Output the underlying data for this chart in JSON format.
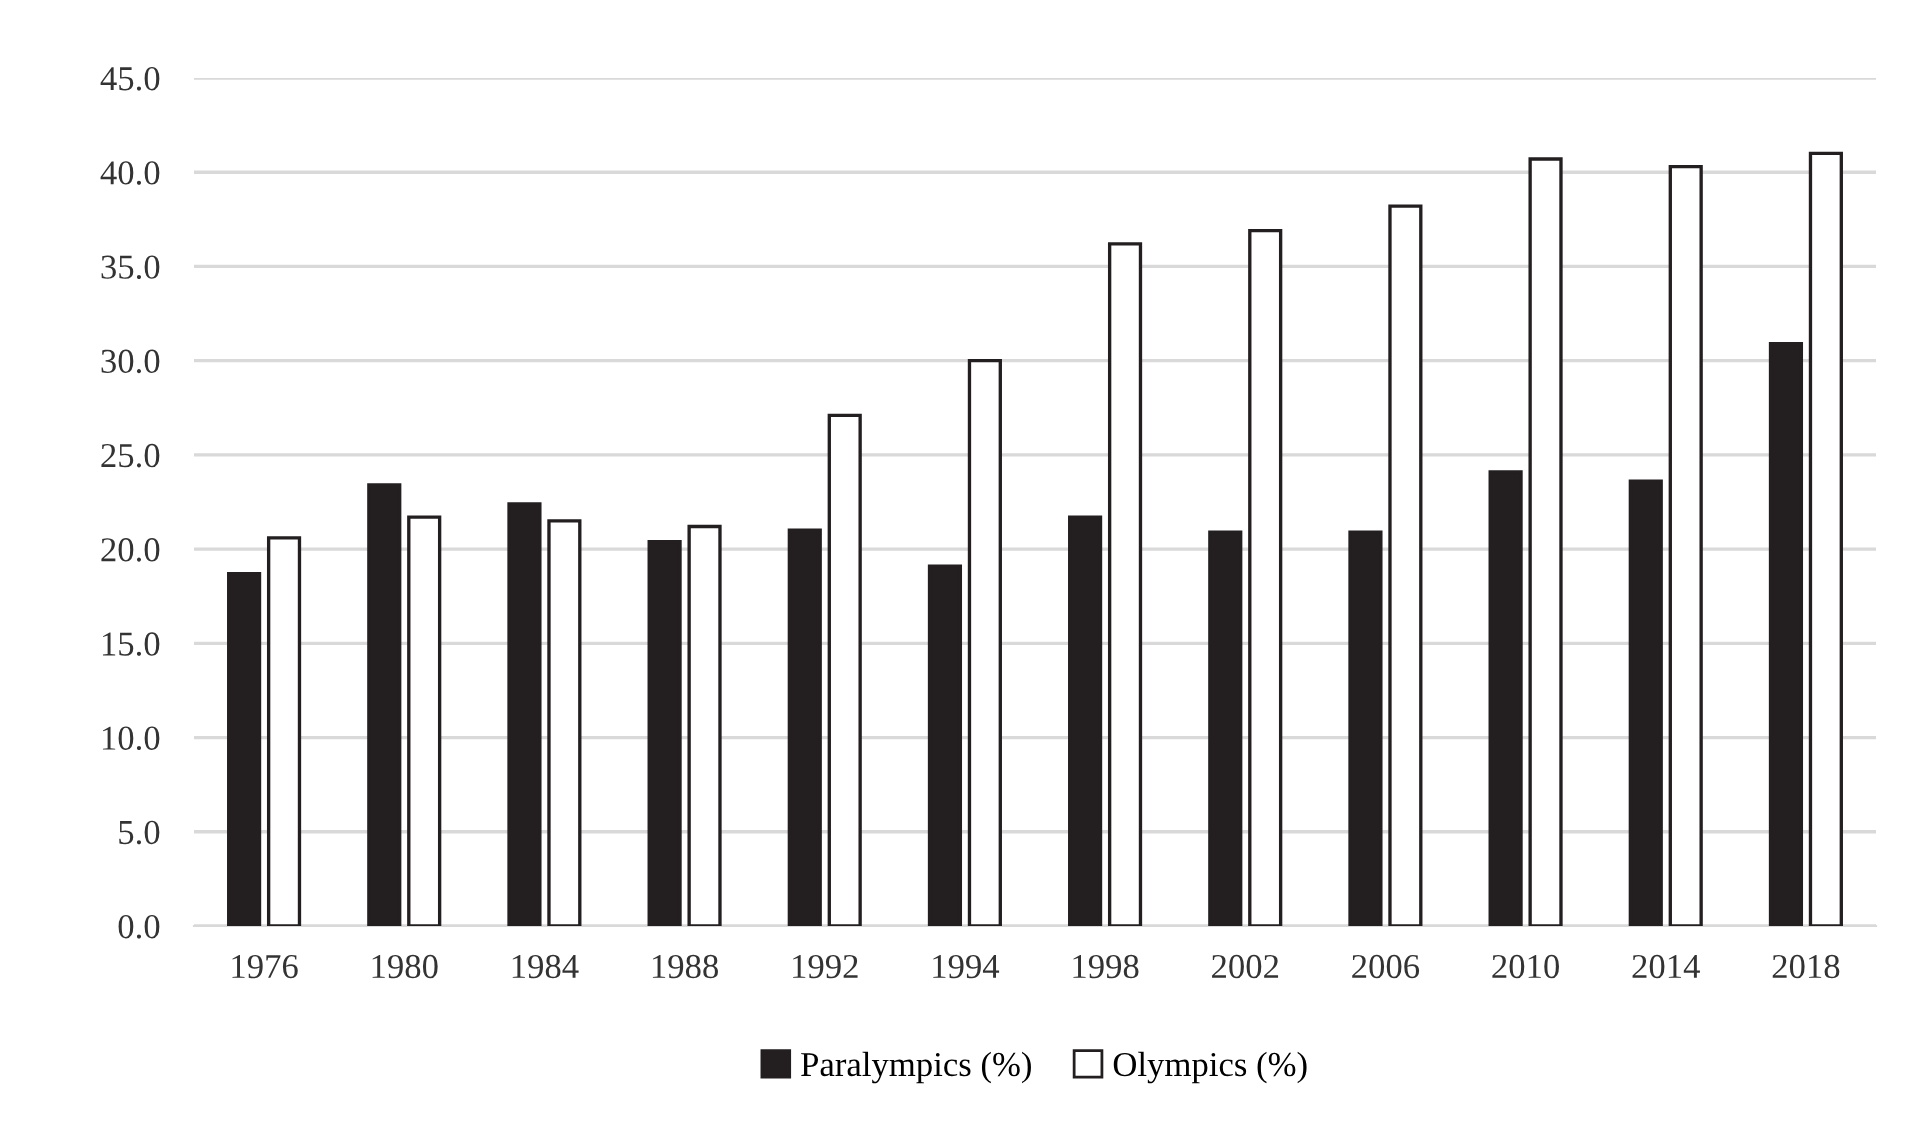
{
  "chart_data": {
    "type": "bar",
    "categories": [
      "1976",
      "1980",
      "1984",
      "1988",
      "1992",
      "1994",
      "1998",
      "2002",
      "2006",
      "2010",
      "2014",
      "2018"
    ],
    "series": [
      {
        "name": "Paralympics (%)",
        "color": "#231f20",
        "values": [
          18.7,
          23.4,
          22.4,
          20.4,
          21.0,
          19.1,
          21.7,
          20.9,
          20.9,
          24.1,
          23.6,
          30.9
        ]
      },
      {
        "name": "Olympics (%)",
        "color": "#ffffff",
        "values": [
          20.6,
          21.7,
          21.5,
          21.2,
          27.1,
          30.0,
          36.2,
          36.9,
          38.2,
          40.7,
          40.3,
          41.0
        ]
      }
    ],
    "ylim": [
      0,
      45
    ],
    "yticks": [
      {
        "value": 0,
        "label": "0.0"
      },
      {
        "value": 5,
        "label": "5.0"
      },
      {
        "value": 10,
        "label": "10.0"
      },
      {
        "value": 15,
        "label": "15.0"
      },
      {
        "value": 20,
        "label": "20.0"
      },
      {
        "value": 25,
        "label": "25.0"
      },
      {
        "value": 30,
        "label": "30.0"
      },
      {
        "value": 35,
        "label": "35.0"
      },
      {
        "value": 40,
        "label": "40.0"
      },
      {
        "value": 45,
        "label": "45.0"
      }
    ],
    "grid": "y",
    "legend": "bottom"
  }
}
